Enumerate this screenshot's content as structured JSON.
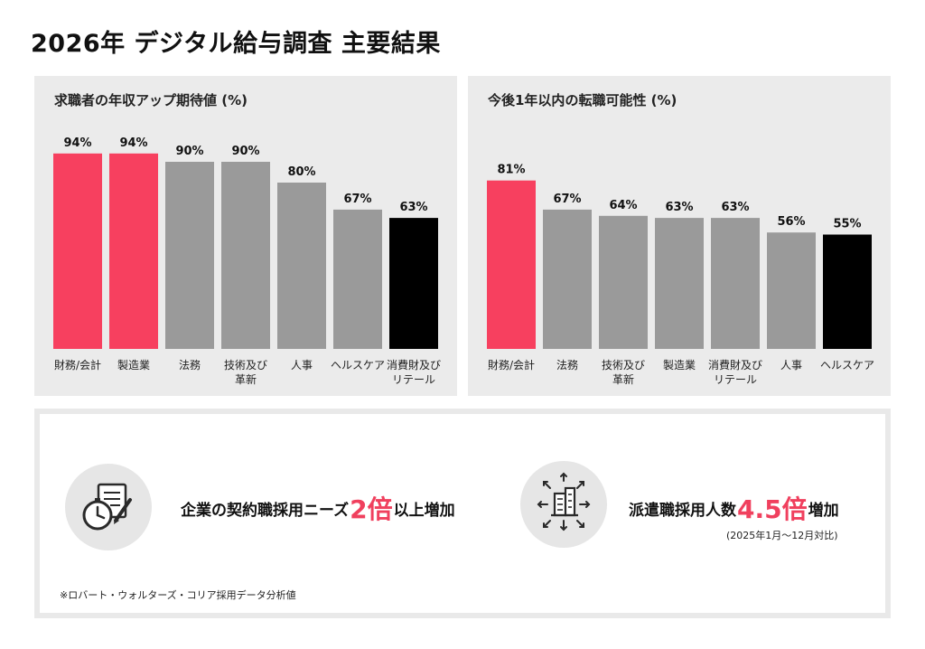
{
  "title": "2026年 デジタル給与調査 主要結果",
  "colors": {
    "highlight": "#f7405f",
    "neutral": "#9a9a9a",
    "dark": "#000000",
    "panel_bg": "#ebebeb",
    "accent_text": "#f0405e"
  },
  "chart_data": [
    {
      "type": "bar",
      "title": "求職者の年収アップ期待値 (%)",
      "categories": [
        "財務/会計",
        "製造業",
        "法務",
        "技術及び\n革新",
        "人事",
        "ヘルスケア",
        "消費財及び\nリテール"
      ],
      "values": [
        94,
        94,
        90,
        90,
        80,
        67,
        63
      ],
      "value_labels": [
        "94%",
        "94%",
        "90%",
        "90%",
        "80%",
        "67%",
        "63%"
      ],
      "bar_colors": [
        "highlight",
        "highlight",
        "neutral",
        "neutral",
        "neutral",
        "neutral",
        "dark"
      ],
      "ylim": [
        0,
        100
      ],
      "grid": false
    },
    {
      "type": "bar",
      "title": "今後1年以内の転職可能性 (%)",
      "categories": [
        "財務/会計",
        "法務",
        "技術及び\n革新",
        "製造業",
        "消費財及び\nリテール",
        "人事",
        "ヘルスケア"
      ],
      "values": [
        81,
        67,
        64,
        63,
        63,
        56,
        55
      ],
      "value_labels": [
        "81%",
        "67%",
        "64%",
        "63%",
        "63%",
        "56%",
        "55%"
      ],
      "bar_colors": [
        "highlight",
        "neutral",
        "neutral",
        "neutral",
        "neutral",
        "neutral",
        "dark"
      ],
      "ylim": [
        0,
        100
      ],
      "grid": false
    }
  ],
  "info": {
    "left": {
      "icon": "clock-contract-pen-icon",
      "prefix": "企業の契約職採用ニーズ",
      "highlight": "2倍",
      "suffix": "以上増加"
    },
    "right": {
      "icon": "building-expand-arrows-icon",
      "prefix": "派遣職採用人数",
      "highlight": "4.5倍",
      "suffix": "増加",
      "note": "(2025年1月～12月対比)"
    },
    "footnote": "※ロバート・ウォルターズ・コリア採用データ分析値"
  }
}
